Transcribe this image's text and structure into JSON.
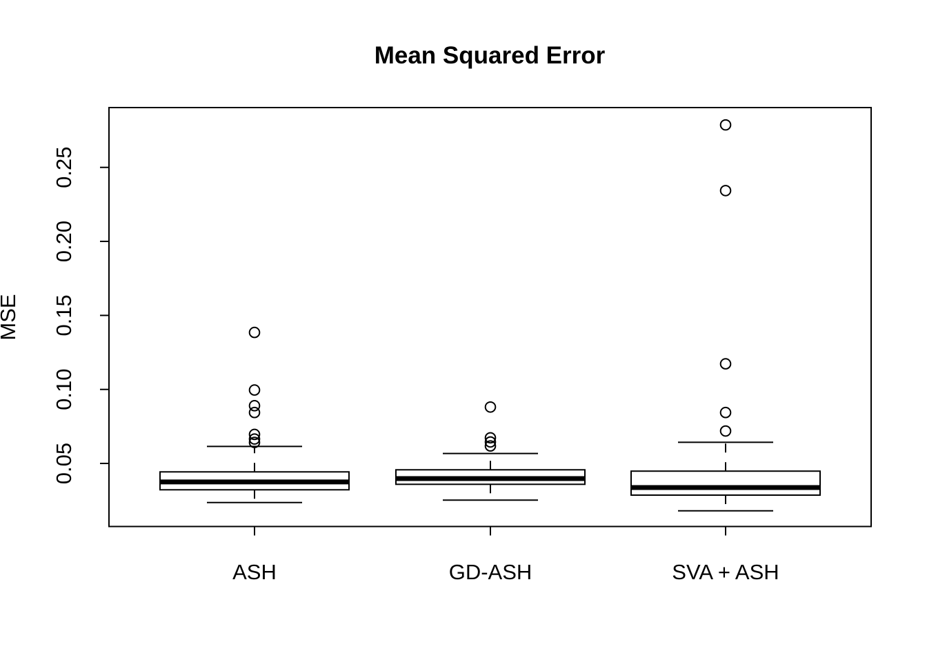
{
  "page": {
    "background": "#ffffff",
    "foreground": "#000000"
  },
  "chart_data": {
    "type": "boxplot",
    "title": "Mean Squared Error",
    "xlabel": "",
    "ylabel": "MSE",
    "categories": [
      "ASH",
      "GD-ASH",
      "SVA + ASH"
    ],
    "ytick_labels": [
      "0.05",
      "0.10",
      "0.15",
      "0.20",
      "0.25"
    ],
    "ytick_values": [
      0.05,
      0.1,
      0.15,
      0.2,
      0.25
    ],
    "ylim": [
      0.0074,
      0.2904
    ],
    "grid": false,
    "legend": "none",
    "box_color": "#000000",
    "box_fill": "#ffffff",
    "series": [
      {
        "name": "ASH",
        "whisker_low": 0.0236,
        "q1": 0.0322,
        "median": 0.0375,
        "q3": 0.0443,
        "whisker_high": 0.0615,
        "outliers": [
          0.0642,
          0.0665,
          0.0696,
          0.0844,
          0.089,
          0.0996,
          0.1385
        ]
      },
      {
        "name": "GD-ASH",
        "whisker_low": 0.0252,
        "q1": 0.0359,
        "median": 0.0398,
        "q3": 0.0457,
        "whisker_high": 0.0567,
        "outliers": [
          0.0618,
          0.0645,
          0.0673,
          0.0881
        ]
      },
      {
        "name": "SVA + ASH",
        "whisker_low": 0.018,
        "q1": 0.0286,
        "median": 0.0337,
        "q3": 0.0448,
        "whisker_high": 0.0643,
        "outliers": [
          0.0719,
          0.0844,
          0.1173,
          0.2343,
          0.2787
        ]
      }
    ]
  }
}
